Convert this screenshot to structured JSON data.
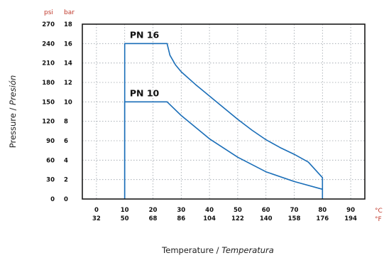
{
  "chart_data": {
    "type": "line",
    "units": {
      "y_psi": "psi",
      "y_bar": "bar",
      "x_c": "°C",
      "x_f": "°F"
    },
    "x_ticks_c": [
      "0",
      "10",
      "20",
      "30",
      "40",
      "50",
      "60",
      "70",
      "80",
      "90"
    ],
    "x_ticks_f": [
      "32",
      "50",
      "68",
      "86",
      "104",
      "122",
      "140",
      "158",
      "176",
      "194"
    ],
    "y_ticks_psi": [
      "0",
      "30",
      "60",
      "90",
      "120",
      "150",
      "180",
      "210",
      "240",
      "270"
    ],
    "y_ticks_bar": [
      "0",
      "2",
      "4",
      "6",
      "8",
      "10",
      "12",
      "14",
      "16",
      "18"
    ],
    "xlabel": {
      "main": "Temperature / ",
      "italic": "Temperatura"
    },
    "ylabel": {
      "main": "Pressure / ",
      "italic": "Presión"
    },
    "xlim": [
      -5,
      95
    ],
    "ylim": [
      0,
      18
    ],
    "grid": true,
    "series": [
      {
        "name": "PN 16",
        "color": "#1a6eb8",
        "x": [
          10,
          10,
          25,
          26,
          28,
          30,
          35,
          40,
          45,
          50,
          55,
          60,
          65,
          70,
          75,
          80,
          80
        ],
        "y": [
          0,
          16,
          16,
          14.8,
          13.8,
          13.1,
          11.8,
          10.6,
          9.4,
          8.2,
          7.1,
          6.1,
          5.3,
          4.6,
          3.8,
          2.2,
          0
        ]
      },
      {
        "name": "PN 10",
        "color": "#1a6eb8",
        "x": [
          10,
          10,
          25,
          30,
          40,
          50,
          60,
          70,
          80
        ],
        "y": [
          0,
          10,
          10,
          8.6,
          6.2,
          4.3,
          2.8,
          1.8,
          1.0
        ]
      }
    ]
  }
}
